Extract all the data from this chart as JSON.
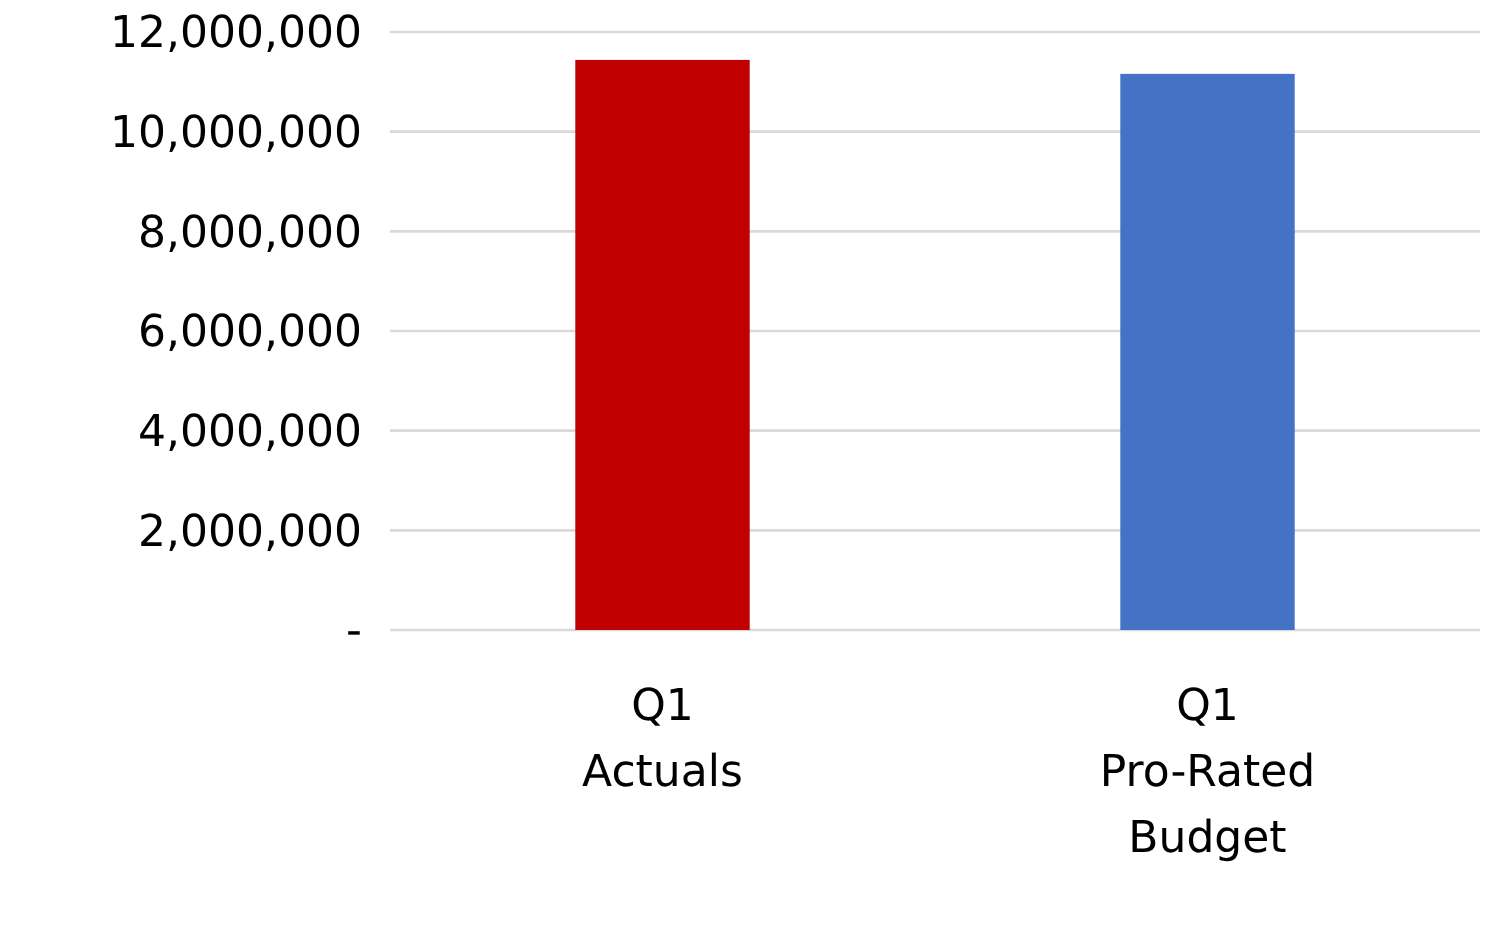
{
  "chart_data": {
    "type": "bar",
    "categories": [
      "Q1\nActuals",
      "Q1\nPro-Rated\nBudget"
    ],
    "values": [
      11440000,
      11160000
    ],
    "colors": [
      "#c00000",
      "#4472c4"
    ],
    "ylim": [
      0,
      12000000
    ],
    "yticks": [
      {
        "value": 0,
        "label": "-"
      },
      {
        "value": 2000000,
        "label": "2,000,000"
      },
      {
        "value": 4000000,
        "label": "4,000,000"
      },
      {
        "value": 6000000,
        "label": "6,000,000"
      },
      {
        "value": 8000000,
        "label": "8,000,000"
      },
      {
        "value": 10000000,
        "label": "10,000,000"
      },
      {
        "value": 12000000,
        "label": "12,000,000"
      }
    ],
    "grid": "y"
  }
}
